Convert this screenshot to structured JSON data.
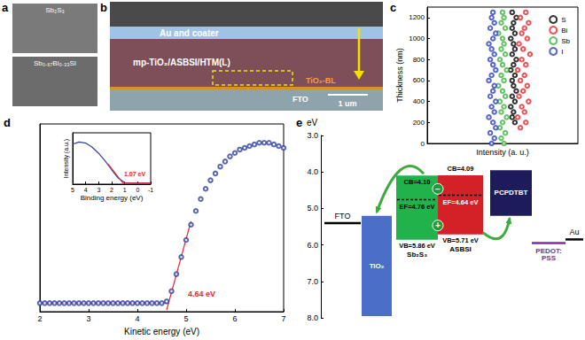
{
  "panel_labels": [
    "a",
    "b",
    "c",
    "d",
    "e"
  ],
  "sem": {
    "a": {
      "top": "Sb₂S₃",
      "bottom": "Sb₀.₆₇Bi₀.₃₃SI"
    },
    "b": {
      "layers": [
        "Au and coater",
        "mp-TiO₂/ASBSI/HTM(L)",
        "TiO₂-BL",
        "FTO"
      ],
      "scale_bar": "1 um"
    }
  },
  "chart_data": [
    {
      "type": "scatter",
      "xlabel": "Intensity (a. u.)",
      "ylabel": "Thickness (nm)",
      "xlim": [
        0,
        1.1
      ],
      "ylim": [
        0,
        1300
      ],
      "yticks": [
        0,
        200,
        400,
        600,
        800,
        1000,
        1200
      ],
      "tick_labels": "y",
      "legend": "upper right",
      "marker": "open_circle",
      "series": [
        {
          "name": "S",
          "color": "#000000",
          "x": [
            0.64,
            0.62,
            0.63,
            0.61,
            0.64,
            0.62,
            0.65,
            0.63,
            0.62,
            0.64,
            0.61,
            0.63,
            0.65,
            0.62,
            0.64,
            0.63,
            0.61,
            0.64,
            0.62,
            0.63,
            0.65,
            0.62
          ],
          "y": [
            200,
            250,
            300,
            350,
            400,
            450,
            500,
            550,
            600,
            650,
            700,
            750,
            800,
            850,
            900,
            950,
            1000,
            1050,
            1100,
            1150,
            1200,
            1250
          ]
        },
        {
          "name": "Bi",
          "color": "#e8262a",
          "x": [
            0.68,
            0.72,
            0.66,
            0.71,
            0.69,
            0.74,
            0.67,
            0.7,
            0.73,
            0.68,
            0.71,
            0.66,
            0.72,
            0.69,
            0.75,
            0.7,
            0.67,
            0.73,
            0.69,
            0.71,
            0.74,
            0.68,
            0.72
          ],
          "y": [
            150,
            200,
            250,
            300,
            350,
            400,
            450,
            500,
            550,
            600,
            650,
            700,
            750,
            800,
            850,
            900,
            950,
            1000,
            1050,
            1100,
            1150,
            1200,
            1250
          ]
        },
        {
          "name": "Sb",
          "color": "#3cb43c",
          "x": [
            0.56,
            0.54,
            0.57,
            0.53,
            0.55,
            0.58,
            0.54,
            0.56,
            0.53,
            0.57,
            0.55,
            0.52,
            0.56,
            0.54,
            0.58,
            0.55,
            0.53,
            0.57,
            0.54,
            0.56,
            0.55,
            0.52,
            0.57,
            0.54,
            0.56,
            0.55
          ],
          "y": [
            0,
            50,
            100,
            150,
            200,
            250,
            300,
            350,
            400,
            450,
            500,
            550,
            600,
            650,
            700,
            750,
            800,
            850,
            900,
            950,
            1000,
            1050,
            1100,
            1150,
            1200,
            1250
          ]
        },
        {
          "name": "I",
          "color": "#2a3fbf",
          "x": [
            0.47,
            0.49,
            0.46,
            0.5,
            0.48,
            0.45,
            0.49,
            0.47,
            0.5,
            0.46,
            0.48,
            0.49,
            0.45,
            0.47,
            0.5,
            0.48,
            0.46,
            0.49,
            0.47,
            0.45,
            0.48,
            0.5,
            0.46,
            0.49,
            0.47,
            0.48
          ],
          "y": [
            0,
            50,
            100,
            150,
            200,
            250,
            300,
            350,
            400,
            450,
            500,
            550,
            600,
            650,
            700,
            750,
            800,
            850,
            900,
            950,
            1000,
            1050,
            1100,
            1150,
            1200,
            1250
          ]
        }
      ]
    },
    {
      "type": "scatter",
      "xlabel": "Kinetic energy (eV)",
      "xlim": [
        2,
        7
      ],
      "xticks": [
        2,
        3,
        4,
        5,
        6,
        7
      ],
      "ylim": [
        0,
        1.1
      ],
      "tick_labels": "x",
      "marker": "open_circle",
      "annotations": [
        "4.64 eV"
      ],
      "series": [
        {
          "color": "#2f3fa0",
          "x": [
            2,
            2.1,
            2.2,
            2.3,
            2.4,
            2.5,
            2.6,
            2.7,
            2.8,
            2.9,
            3,
            3.1,
            3.2,
            3.3,
            3.4,
            3.5,
            3.6,
            3.7,
            3.8,
            3.9,
            4,
            4.1,
            4.2,
            4.3,
            4.4,
            4.5,
            4.6,
            4.7,
            4.8,
            4.9,
            5,
            5.1,
            5.2,
            5.3,
            5.4,
            5.5,
            5.6,
            5.7,
            5.8,
            5.9,
            6,
            6.1,
            6.2,
            6.3,
            6.4,
            6.5,
            6.6,
            6.7,
            6.8,
            6.9,
            7
          ],
          "y": [
            0.05,
            0.05,
            0.05,
            0.05,
            0.05,
            0.05,
            0.05,
            0.05,
            0.05,
            0.05,
            0.05,
            0.05,
            0.05,
            0.05,
            0.05,
            0.05,
            0.05,
            0.05,
            0.05,
            0.05,
            0.05,
            0.05,
            0.05,
            0.05,
            0.05,
            0.05,
            0.06,
            0.12,
            0.22,
            0.32,
            0.42,
            0.51,
            0.59,
            0.66,
            0.72,
            0.77,
            0.81,
            0.85,
            0.88,
            0.91,
            0.93,
            0.95,
            0.96,
            0.97,
            0.98,
            0.99,
            0.99,
            0.99,
            0.98,
            0.97,
            0.96
          ]
        },
        {
          "type": "line",
          "color": "#e8262a",
          "x": [
            2,
            4.64
          ],
          "y": [
            0.05,
            0.05
          ]
        },
        {
          "type": "line",
          "color": "#e8262a",
          "x": [
            4.6,
            5.1
          ],
          "y": [
            0.01,
            0.53
          ]
        }
      ]
    },
    {
      "type": "line",
      "xlabel": "Binding energy (eV)",
      "ylabel": "Intensity (a.u.)",
      "xlim": [
        5,
        -1
      ],
      "xticks": [
        5,
        4,
        3,
        2,
        1,
        0,
        -1
      ],
      "ylim": [
        0,
        1
      ],
      "tick_labels": "x",
      "annotations": [
        "1.07 eV"
      ],
      "series": [
        {
          "color": "#2f3fa0",
          "x": [
            5,
            4.5,
            4,
            3.5,
            3,
            2.5,
            2,
            1.5,
            1,
            0.5,
            0,
            -0.5,
            -1
          ],
          "y": [
            0.78,
            0.82,
            0.8,
            0.72,
            0.6,
            0.45,
            0.28,
            0.12,
            0.03,
            0.02,
            0.02,
            0.02,
            0.02
          ]
        },
        {
          "color": "#e8262a",
          "x": [
            2.3,
            1.07
          ],
          "y": [
            0.4,
            0
          ]
        },
        {
          "color": "#e8262a",
          "x": [
            1.07,
            -1
          ],
          "y": [
            0.02,
            0.02
          ]
        }
      ]
    }
  ],
  "diagram": {
    "ylabel": "eV",
    "ylim": [
      8,
      3
    ],
    "yticks": [
      {
        "value": 3,
        "label": "3.0"
      },
      {
        "value": 4,
        "label": "4.0"
      },
      {
        "value": 5,
        "label": "5.0"
      },
      {
        "value": 6,
        "label": "6.0"
      },
      {
        "value": 7,
        "label": "7.0"
      },
      {
        "value": 8,
        "label": "8.0"
      }
    ],
    "layers": [
      {
        "name": "FTO",
        "type": "line",
        "level": 5.4,
        "color": "#000000"
      },
      {
        "name": "TiO₂",
        "type": "box",
        "top": 5.2,
        "bottom": 7.95,
        "color": "#4b6fc8"
      },
      {
        "name": "Sb₂S₃",
        "type": "band",
        "cb": 4.1,
        "vb": 5.86,
        "ef": 4.76,
        "cb_label": "CB=4.10",
        "vb_label": "VB=5.86 eV",
        "ef_label": "EF=4.76 eV",
        "color": "#22b24c"
      },
      {
        "name": "ASBSI",
        "type": "band",
        "cb": 4.09,
        "vb": 5.71,
        "ef": 4.64,
        "cb_label": "CB=4.09",
        "vb_label": "VB=5.71 eV",
        "ef_label": "EF=4.64 eV",
        "color": "#d42027"
      },
      {
        "name": "PCPDTBT",
        "type": "box",
        "top": 3.95,
        "bottom": 5.2,
        "color": "#1e1b5a"
      },
      {
        "name": "PEDOT: PSS",
        "type": "line",
        "level": 5.95,
        "color": "#7b2f9e"
      },
      {
        "name": "Au",
        "type": "line",
        "level": 5.85,
        "color": "#000000"
      }
    ],
    "carriers": {
      "electron": "−",
      "hole": "+"
    }
  }
}
